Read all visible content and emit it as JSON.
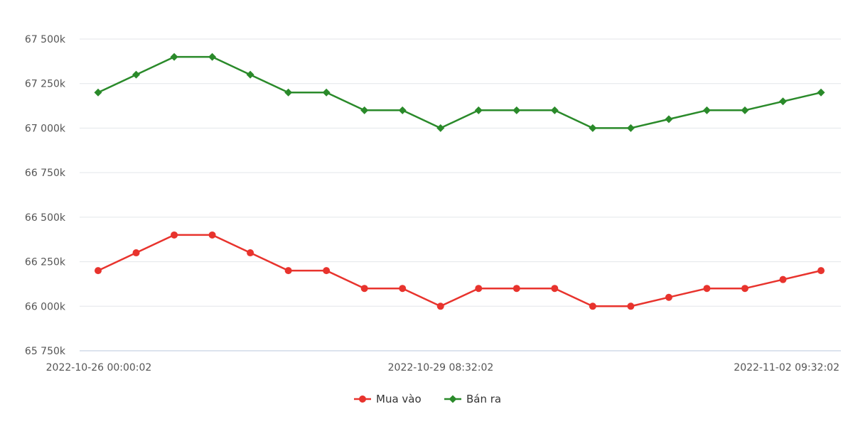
{
  "chart_data": {
    "type": "line",
    "title": "",
    "xlabel": "",
    "ylabel": "",
    "ylim": [
      65750,
      67500
    ],
    "yticks": [
      65750,
      66000,
      66250,
      66500,
      66750,
      67000,
      67250,
      67500
    ],
    "y_tick_labels": [
      "65 750k",
      "66 000k",
      "66 250k",
      "66 500k",
      "66 750k",
      "67 000k",
      "67 250k",
      "67 500k"
    ],
    "x_tick_labels": [
      "2022-10-26 00:00:02",
      "2022-10-29 08:32:02",
      "2022-11-02 09:32:02"
    ],
    "grid": true,
    "legend": "bottom",
    "series": [
      {
        "name": "Mua vào",
        "color": "#e8332d",
        "marker": "circle",
        "values": [
          66200,
          66300,
          66400,
          66400,
          66300,
          66200,
          66200,
          66100,
          66100,
          66000,
          66100,
          66100,
          66100,
          66000,
          66000,
          66050,
          66100,
          66100,
          66150,
          66200
        ]
      },
      {
        "name": "Bán ra",
        "color": "#2a8a2a",
        "marker": "diamond",
        "values": [
          67200,
          67300,
          67400,
          67400,
          67300,
          67200,
          67200,
          67100,
          67100,
          67000,
          67100,
          67100,
          67100,
          67000,
          67000,
          67050,
          67100,
          67100,
          67150,
          67200
        ]
      }
    ]
  }
}
